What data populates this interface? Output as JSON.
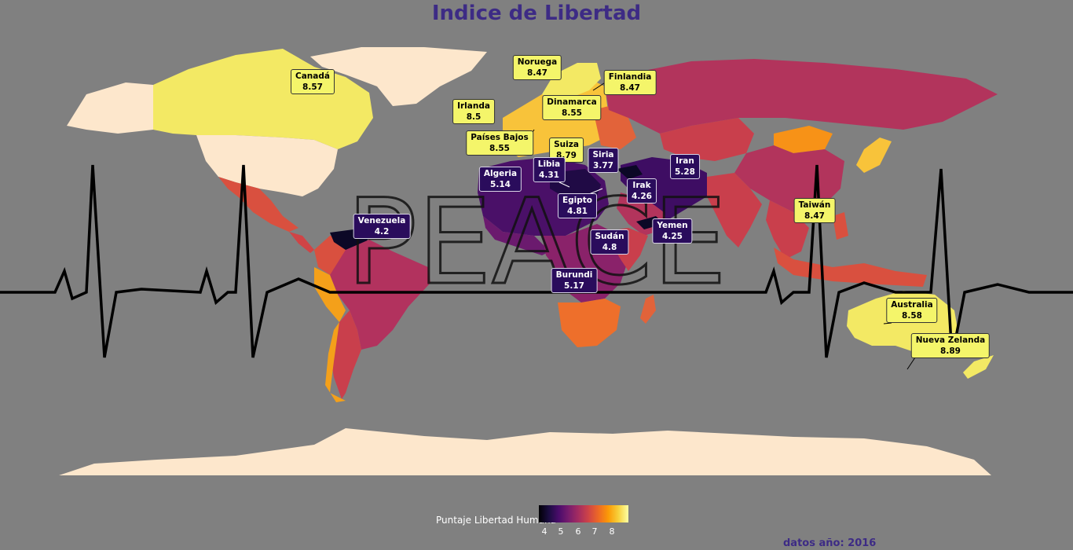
{
  "title": "Indice de Libertad",
  "source": "datos año: 2016",
  "legend": {
    "title": "Puntaje Libertad Humana",
    "ticks": [
      "4",
      "5",
      "6",
      "7",
      "8"
    ],
    "min": 3.5,
    "max": 9
  },
  "colors": {
    "background": "#808080",
    "no_data": "#fde7cc",
    "title": "#3d2b85",
    "label_high_bg": "#f4f56a",
    "label_low_bg": "#2a0c5c"
  },
  "watermark_word": "PEACE",
  "labels": [
    {
      "country": "Canadá",
      "score": "8.57",
      "group": "hi"
    },
    {
      "country": "Noruega",
      "score": "8.47",
      "group": "hi"
    },
    {
      "country": "Finlandia",
      "score": "8.47",
      "group": "hi"
    },
    {
      "country": "Irlanda",
      "score": "8.5",
      "group": "hi"
    },
    {
      "country": "Dinamarca",
      "score": "8.55",
      "group": "hi"
    },
    {
      "country": "Países Bajos",
      "score": "8.55",
      "group": "hi"
    },
    {
      "country": "Suiza",
      "score": "8.79",
      "group": "hi"
    },
    {
      "country": "Siria",
      "score": "3.77",
      "group": "lo"
    },
    {
      "country": "Libia",
      "score": "4.31",
      "group": "lo"
    },
    {
      "country": "Algeria",
      "score": "5.14",
      "group": "lo"
    },
    {
      "country": "Iran",
      "score": "5.28",
      "group": "lo"
    },
    {
      "country": "Irak",
      "score": "4.26",
      "group": "lo"
    },
    {
      "country": "Egipto",
      "score": "4.81",
      "group": "lo"
    },
    {
      "country": "Taiwán",
      "score": "8.47",
      "group": "hi"
    },
    {
      "country": "Venezuela",
      "score": "4.2",
      "group": "lo"
    },
    {
      "country": "Yemen",
      "score": "4.25",
      "group": "lo"
    },
    {
      "country": "Sudán",
      "score": "4.8",
      "group": "lo"
    },
    {
      "country": "Burundi",
      "score": "5.17",
      "group": "lo"
    },
    {
      "country": "Australia",
      "score": "8.58",
      "group": "hi"
    },
    {
      "country": "Nueva Zelanda",
      "score": "8.89",
      "group": "hi"
    }
  ]
}
